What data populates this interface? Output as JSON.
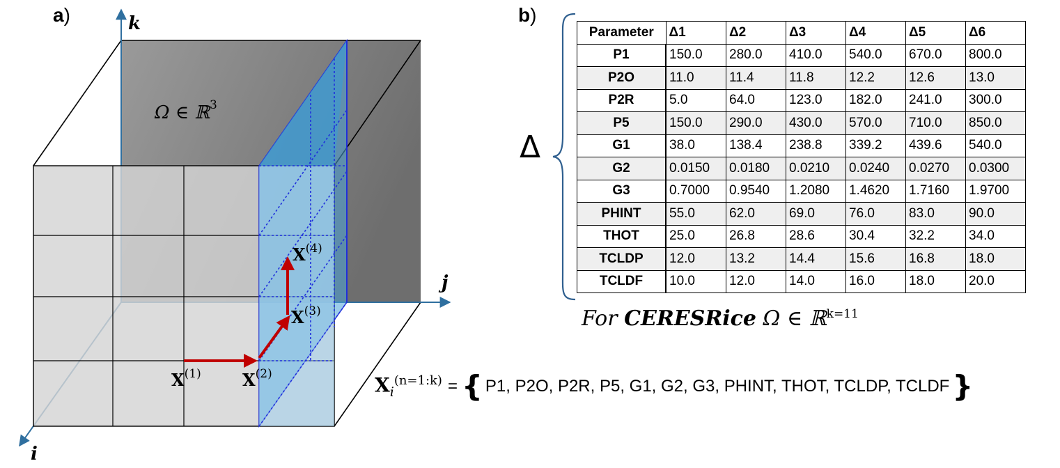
{
  "panel_a": {
    "label": "a",
    "paren": ")",
    "axis_k": "k",
    "axis_j": "j",
    "axis_i": "i",
    "omega_label": "Ω ∈ ℝ",
    "omega_exp": "3",
    "points": [
      {
        "base": "X",
        "sup": "(1)"
      },
      {
        "base": "X",
        "sup": "(2)"
      },
      {
        "base": "X",
        "sup": "(3)"
      },
      {
        "base": "X",
        "sup": "(4)"
      }
    ],
    "colors": {
      "axis": "#2f6f9f",
      "arrow": "#c00000",
      "slab": "#4aa3d8",
      "dashed": "#1f2fdc",
      "dark_face": "#8a8a8a",
      "light_face": "#d4d4d4"
    }
  },
  "panel_b": {
    "label": "b",
    "paren": ")",
    "delta_symbol": "Δ",
    "table": {
      "headers": [
        "Parameter",
        "Δ1",
        "Δ2",
        "Δ3",
        "Δ4",
        "Δ5",
        "Δ6"
      ],
      "rows": [
        [
          "P1",
          "150.0",
          "280.0",
          "410.0",
          "540.0",
          "670.0",
          "800.0"
        ],
        [
          "P2O",
          "11.0",
          "11.4",
          "11.8",
          "12.2",
          "12.6",
          "13.0"
        ],
        [
          "P2R",
          "5.0",
          "64.0",
          "123.0",
          "182.0",
          "241.0",
          "300.0"
        ],
        [
          "P5",
          "150.0",
          "290.0",
          "430.0",
          "570.0",
          "710.0",
          "850.0"
        ],
        [
          "G1",
          "38.0",
          "138.4",
          "238.8",
          "339.2",
          "439.6",
          "540.0"
        ],
        [
          "G2",
          "0.0150",
          "0.0180",
          "0.0210",
          "0.0240",
          "0.0270",
          "0.0300"
        ],
        [
          "G3",
          "0.7000",
          "0.9540",
          "1.2080",
          "1.4620",
          "1.7160",
          "1.9700"
        ],
        [
          "PHINT",
          "55.0",
          "62.0",
          "69.0",
          "76.0",
          "83.0",
          "90.0"
        ],
        [
          "THOT",
          "25.0",
          "26.8",
          "28.6",
          "30.4",
          "32.2",
          "34.0"
        ],
        [
          "TCLDP",
          "12.0",
          "13.2",
          "14.4",
          "15.6",
          "16.8",
          "18.0"
        ],
        [
          "TCLDF",
          "10.0",
          "12.0",
          "14.0",
          "16.0",
          "18.0",
          "20.0"
        ]
      ]
    },
    "caption": {
      "prefix": "For ",
      "model": "CERESRice",
      "space": " Ω ∈ ℝ",
      "exp": "k=11"
    }
  },
  "set_definition": {
    "base": "X",
    "sub": "i",
    "sup": "(n=1:k)",
    "equals": "=",
    "open_brace": "{",
    "close_brace": "}",
    "members": "P1, P2O, P2R, P5, G1, G2, G3, PHINT, THOT, TCLDP, TCLDF"
  }
}
